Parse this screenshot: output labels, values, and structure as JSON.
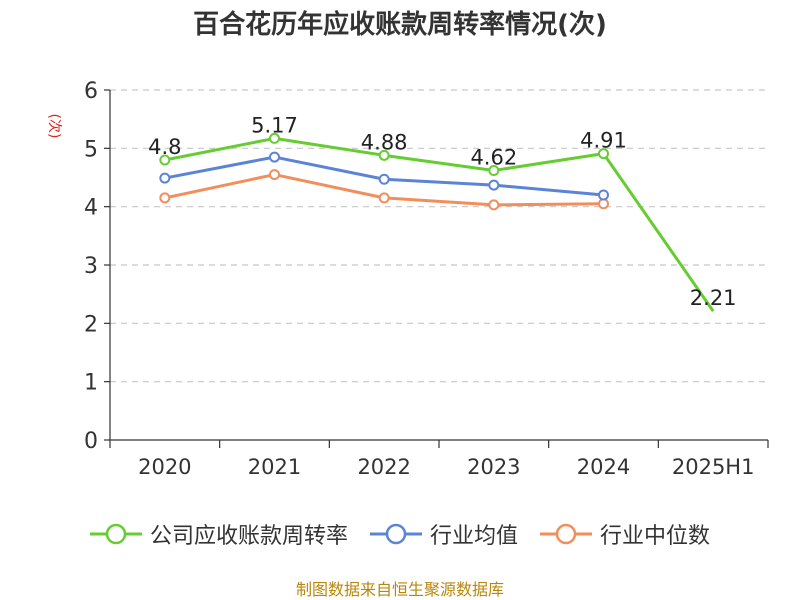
{
  "chart_data": {
    "type": "line",
    "title": "百合花历年应收账款周转率情况(次)",
    "ylabel": "(次)",
    "categories": [
      "2020",
      "2021",
      "2022",
      "2023",
      "2024",
      "2025H1"
    ],
    "ylim": [
      0,
      6
    ],
    "yticks": [
      0,
      1,
      2,
      3,
      4,
      5,
      6
    ],
    "grid": true,
    "legend_position": "bottom",
    "series": [
      {
        "name": "公司应收账款周转率",
        "color": "#66cc33",
        "values": [
          4.8,
          5.17,
          4.88,
          4.62,
          4.91,
          2.21
        ],
        "labels": [
          "4.8",
          "5.17",
          "4.88",
          "4.62",
          "4.91",
          "2.21"
        ]
      },
      {
        "name": "行业均值",
        "color": "#5b84d6",
        "values": [
          4.49,
          4.85,
          4.47,
          4.37,
          4.2,
          null
        ]
      },
      {
        "name": "行业中位数",
        "color": "#f28e5b",
        "values": [
          4.15,
          4.55,
          4.15,
          4.03,
          4.05,
          null
        ]
      }
    ]
  },
  "legend": {
    "items": [
      {
        "label": "公司应收账款周转率"
      },
      {
        "label": "行业均值"
      },
      {
        "label": "行业中位数"
      }
    ]
  },
  "source": "制图数据来自恒生聚源数据库"
}
